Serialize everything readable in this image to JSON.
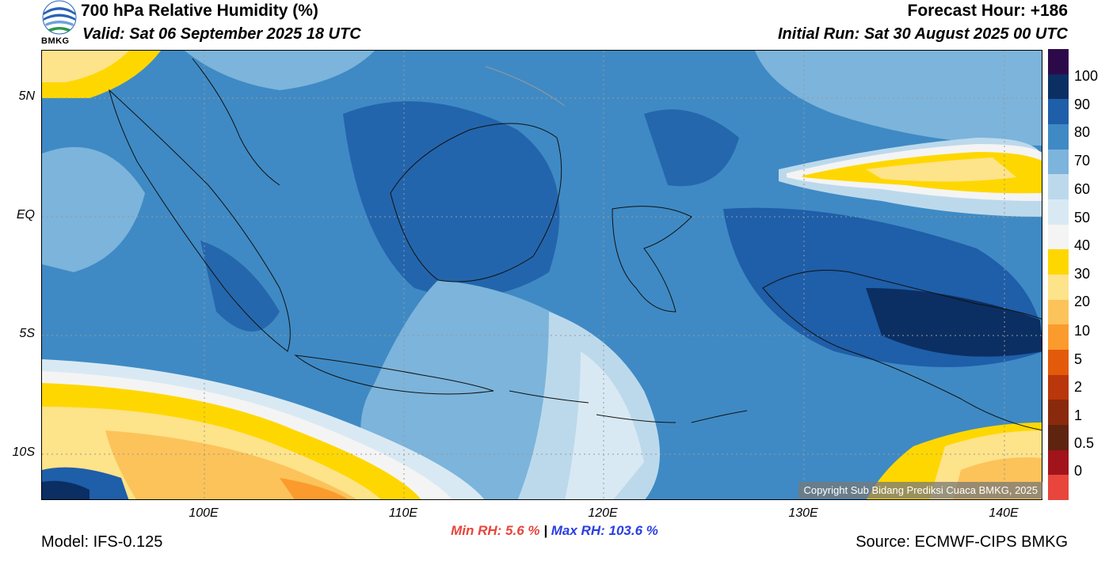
{
  "header": {
    "title": "700 hPa Relative Humidity (%)",
    "valid": "Valid: Sat 06 September 2025 18 UTC",
    "forecast_hour": "Forecast Hour: +186",
    "initial_run": "Initial Run: Sat 30 August 2025 00 UTC",
    "logo_text": "BMKG"
  },
  "axes": {
    "lat_labels": [
      "5N",
      "EQ",
      "5S",
      "10S"
    ],
    "lon_labels": [
      "100E",
      "110E",
      "120E",
      "130E",
      "140E"
    ]
  },
  "stats": {
    "min_label": "Min RH:",
    "min_value": "5.6 %",
    "separator": "|",
    "max_label": "Max RH:",
    "max_value": "103.6 %"
  },
  "footer": {
    "model": "Model: IFS-0.125",
    "source": "Source: ECMWF-CIPS BMKG",
    "copyright": "Copyright Sub Bidang Prediksi Cuaca BMKG, 2025"
  },
  "colorbar": {
    "labels": [
      "100",
      "90",
      "80",
      "70",
      "60",
      "50",
      "40",
      "30",
      "20",
      "10",
      "5",
      "2",
      "1",
      "0.5",
      "0"
    ],
    "colors": [
      "#2c0a4a",
      "#0b2f63",
      "#1f5ea8",
      "#3f8ac4",
      "#7cb4db",
      "#bcd9ec",
      "#d9e9f3",
      "#f4f4f4",
      "#ffd700",
      "#fde38a",
      "#fcc35a",
      "#fb9b2e",
      "#e35a0b",
      "#b9370a",
      "#8a2a0c",
      "#5e2410",
      "#a1141b",
      "#e8453c"
    ]
  }
}
